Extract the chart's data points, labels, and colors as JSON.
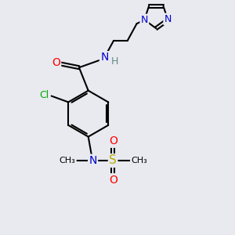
{
  "bg_color": "#e8eaf0",
  "atom_colors": {
    "C": "#000000",
    "N": "#0000cc",
    "O": "#ff0000",
    "Cl": "#00aa00",
    "S": "#bbaa00",
    "H": "#668888"
  },
  "font_size": 9
}
